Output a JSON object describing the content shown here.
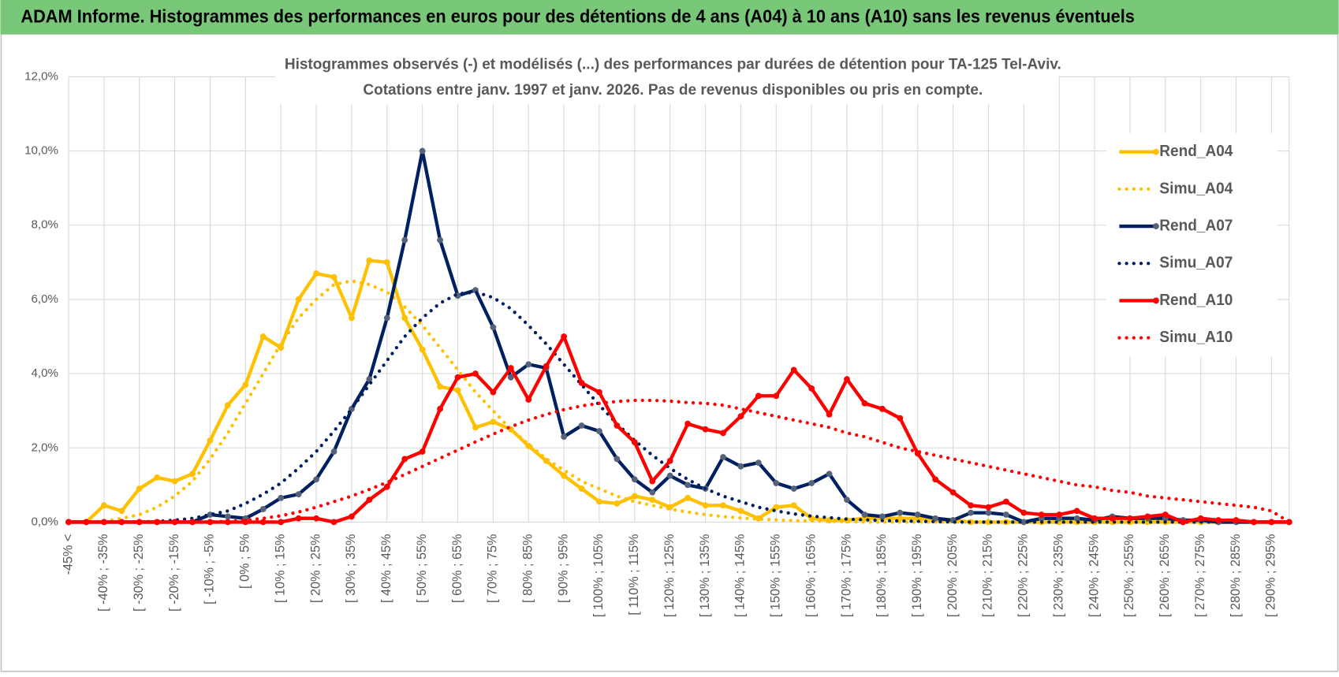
{
  "header": {
    "title": "ADAM Informe. Histogrammes des performances en euros pour des détentions de 4 ans (A04) à 10 ans (A10) sans les revenus éventuels"
  },
  "chart_data": {
    "type": "line",
    "title": "Histogrammes observés (-) et modélisés (...) des performances par durées de détention pour TA-125 Tel-Aviv.",
    "subtitle": "Cotations entre janv. 1997 et janv. 2026. Pas de revenus disponibles ou pris en compte.",
    "categories": [
      "-45% <",
      null,
      "[ -40% ; -35%",
      null,
      "[ -30% ; -25%",
      null,
      "[ -20% ; -15%",
      null,
      "[ -10% ; -5%",
      null,
      "[ 0% ; 5%",
      null,
      "[ 10% ; 15%",
      null,
      "[ 20% ; 25%",
      null,
      "[ 30% ; 35%",
      null,
      "[ 40% ; 45%",
      null,
      "[ 50% ; 55%",
      null,
      "[ 60% ; 65%",
      null,
      "[ 70% ; 75%",
      null,
      "[ 80% ; 85%",
      null,
      "[ 90% ; 95%",
      null,
      "[ 100% ; 105%",
      null,
      "[ 110% ; 115%",
      null,
      "[ 120% ; 125%",
      null,
      "[ 130% ; 135%",
      null,
      "[ 140% ; 145%",
      null,
      "[ 150% ; 155%",
      null,
      "[ 160% ; 165%",
      null,
      "[ 170% ; 175%",
      null,
      "[ 180% ; 185%",
      null,
      "[ 190% ; 195%",
      null,
      "[ 200% ; 205%",
      null,
      "[ 210% ; 215%",
      null,
      "[ 220% ; 225%",
      null,
      "[ 230% ; 235%",
      null,
      "[ 240% ; 245%",
      null,
      "[ 250% ; 255%",
      null,
      "[ 260% ; 265%",
      null,
      "[ 270% ; 275%",
      null,
      "[ 280% ; 285%",
      null,
      "[ 290% ; 295%",
      null
    ],
    "ylim": [
      0,
      12
    ],
    "yticks": [
      {
        "value": 0,
        "label": "0,0%"
      },
      {
        "value": 2,
        "label": "2,0%"
      },
      {
        "value": 4,
        "label": "4,0%"
      },
      {
        "value": 6,
        "label": "6,0%"
      },
      {
        "value": 8,
        "label": "8,0%"
      },
      {
        "value": 10,
        "label": "10,0%"
      },
      {
        "value": 12,
        "label": "12,0%"
      }
    ],
    "grid": true,
    "legend": "right",
    "series": [
      {
        "name": "Rend_A04",
        "color": "#ffc000",
        "dash": "solid",
        "marker": true,
        "marker_color": "#ffc000",
        "values": [
          0,
          0,
          0.45,
          0.3,
          0.9,
          1.2,
          1.1,
          1.3,
          2.2,
          3.15,
          3.7,
          5.0,
          4.7,
          6.0,
          6.7,
          6.6,
          5.5,
          7.05,
          7.0,
          5.5,
          4.65,
          3.65,
          3.55,
          2.55,
          2.7,
          2.5,
          2.05,
          1.65,
          1.25,
          0.9,
          0.55,
          0.5,
          0.7,
          0.6,
          0.4,
          0.65,
          0.45,
          0.45,
          0.3,
          0.1,
          0.4,
          0.45,
          0.1,
          0.05,
          0.05,
          0.1,
          0.1,
          0.1,
          0.1,
          0.05,
          0.05,
          0,
          0,
          0,
          0,
          0,
          0,
          0,
          0,
          0,
          0,
          0,
          0,
          0,
          0,
          0,
          0,
          0,
          0,
          0
        ]
      },
      {
        "name": "Simu_A04",
        "color": "#ffc000",
        "dash": "dotted",
        "marker": false,
        "values": [
          0,
          0,
          0.02,
          0.1,
          0.2,
          0.4,
          0.7,
          1.1,
          1.7,
          2.4,
          3.2,
          4.0,
          4.8,
          5.5,
          6.0,
          6.4,
          6.5,
          6.4,
          6.2,
          5.8,
          5.3,
          4.7,
          4.1,
          3.5,
          3.0,
          2.5,
          2.1,
          1.7,
          1.4,
          1.1,
          0.9,
          0.7,
          0.55,
          0.45,
          0.35,
          0.27,
          0.2,
          0.15,
          0.11,
          0.08,
          0.06,
          0.04,
          0.03,
          0.02,
          0.01,
          0,
          0,
          0,
          0,
          0,
          0,
          0,
          0,
          0,
          0,
          0,
          0,
          0,
          0,
          0,
          0,
          0,
          0,
          0,
          0,
          0,
          0,
          0,
          0,
          0
        ]
      },
      {
        "name": "Rend_A07",
        "color": "#002060",
        "dash": "solid",
        "marker": true,
        "marker_color": "#56627a",
        "values": [
          0,
          0,
          0,
          0,
          0,
          0,
          0,
          0,
          0.2,
          0.15,
          0.1,
          0.35,
          0.65,
          0.75,
          1.15,
          1.9,
          3.05,
          3.85,
          5.5,
          7.6,
          10.0,
          7.6,
          6.1,
          6.25,
          5.25,
          3.9,
          4.25,
          4.15,
          2.3,
          2.6,
          2.45,
          1.7,
          1.15,
          0.8,
          1.25,
          1.0,
          0.9,
          1.75,
          1.5,
          1.6,
          1.05,
          0.9,
          1.05,
          1.3,
          0.6,
          0.2,
          0.15,
          0.25,
          0.2,
          0.1,
          0.05,
          0.25,
          0.25,
          0.2,
          0,
          0.1,
          0.1,
          0.1,
          0.05,
          0.15,
          0.1,
          0.1,
          0.1,
          0.05,
          0.05,
          0,
          0,
          0,
          0,
          0
        ]
      },
      {
        "name": "Simu_A07",
        "color": "#002060",
        "dash": "dotted",
        "marker": false,
        "values": [
          0,
          0,
          0,
          0,
          0,
          0.02,
          0.05,
          0.1,
          0.2,
          0.3,
          0.5,
          0.75,
          1.05,
          1.45,
          1.9,
          2.45,
          3.05,
          3.7,
          4.35,
          5.0,
          5.5,
          5.9,
          6.15,
          6.2,
          6.05,
          5.75,
          5.3,
          4.8,
          4.25,
          3.7,
          3.15,
          2.65,
          2.2,
          1.8,
          1.45,
          1.15,
          0.9,
          0.7,
          0.55,
          0.4,
          0.3,
          0.22,
          0.16,
          0.12,
          0.08,
          0.06,
          0.04,
          0.03,
          0.02,
          0.01,
          0,
          0,
          0,
          0,
          0,
          0,
          0,
          0,
          0,
          0,
          0,
          0,
          0,
          0,
          0,
          0,
          0,
          0,
          0,
          0
        ]
      },
      {
        "name": "Rend_A10",
        "color": "#ff0000",
        "dash": "solid",
        "marker": true,
        "marker_color": "#ff0000",
        "values": [
          0,
          0,
          0,
          0,
          0,
          0,
          0,
          0,
          0,
          0,
          0,
          0,
          0,
          0.1,
          0.1,
          0,
          0.15,
          0.6,
          0.95,
          1.7,
          1.9,
          3.05,
          3.9,
          4.0,
          3.5,
          4.15,
          3.3,
          4.2,
          5.0,
          3.75,
          3.5,
          2.6,
          2.15,
          1.1,
          1.65,
          2.65,
          2.5,
          2.4,
          2.85,
          3.4,
          3.4,
          4.1,
          3.6,
          2.9,
          3.85,
          3.2,
          3.05,
          2.8,
          1.85,
          1.15,
          0.8,
          0.45,
          0.4,
          0.55,
          0.25,
          0.2,
          0.2,
          0.3,
          0.1,
          0.1,
          0.1,
          0.15,
          0.2,
          0,
          0.1,
          0.05,
          0.05,
          0,
          0,
          0
        ]
      },
      {
        "name": "Simu_A10",
        "color": "#ff0000",
        "dash": "dotted",
        "marker": false,
        "values": [
          0,
          0,
          0,
          0,
          0,
          0,
          0,
          0,
          0,
          0.02,
          0.05,
          0.1,
          0.17,
          0.27,
          0.4,
          0.55,
          0.7,
          0.88,
          1.07,
          1.28,
          1.5,
          1.72,
          1.94,
          2.16,
          2.37,
          2.57,
          2.75,
          2.9,
          3.03,
          3.13,
          3.2,
          3.25,
          3.28,
          3.28,
          3.26,
          3.22,
          3.2,
          3.15,
          3.05,
          2.95,
          2.85,
          2.75,
          2.65,
          2.55,
          2.4,
          2.3,
          2.15,
          2.0,
          1.9,
          1.8,
          1.7,
          1.6,
          1.5,
          1.4,
          1.3,
          1.2,
          1.1,
          1.0,
          0.95,
          0.85,
          0.8,
          0.7,
          0.65,
          0.6,
          0.55,
          0.5,
          0.45,
          0.4,
          0.3,
          0
        ]
      }
    ]
  }
}
